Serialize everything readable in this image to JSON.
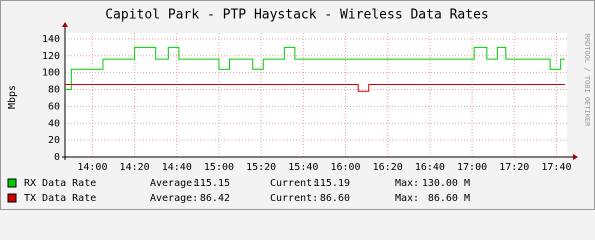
{
  "chart_data": {
    "type": "line",
    "title": "Capitol Park - PTP Haystack - Wireless Data Rates",
    "y_label": "Mbps",
    "side_label": "RRDTOOL / TOBI OETIKER",
    "xlim": [
      827,
      1065
    ],
    "xticks": [
      {
        "value": 840,
        "label": "14:00"
      },
      {
        "value": 860,
        "label": "14:20"
      },
      {
        "value": 880,
        "label": "14:40"
      },
      {
        "value": 900,
        "label": "15:00"
      },
      {
        "value": 920,
        "label": "15:20"
      },
      {
        "value": 940,
        "label": "15:40"
      },
      {
        "value": 960,
        "label": "16:00"
      },
      {
        "value": 980,
        "label": "16:20"
      },
      {
        "value": 1000,
        "label": "16:40"
      },
      {
        "value": 1020,
        "label": "17:00"
      },
      {
        "value": 1040,
        "label": "17:20"
      },
      {
        "value": 1060,
        "label": "17:40"
      }
    ],
    "ylim": [
      0,
      147
    ],
    "yticks": [
      0,
      20,
      40,
      60,
      80,
      100,
      120,
      140
    ],
    "grid": true,
    "series": [
      {
        "name": "RX Data Rate",
        "color": "#00cc00",
        "x": [
          827,
          830,
          830,
          845,
          845,
          860,
          860,
          870,
          870,
          876,
          876,
          881,
          881,
          900,
          900,
          905,
          905,
          916,
          916,
          921,
          921,
          931,
          931,
          936,
          936,
          1021,
          1021,
          1027,
          1027,
          1032,
          1032,
          1036,
          1036,
          1057,
          1057,
          1062,
          1062,
          1064
        ],
        "values": [
          80,
          80,
          104,
          104,
          116,
          116,
          130,
          130,
          116,
          116,
          130,
          130,
          116,
          116,
          104,
          104,
          116,
          116,
          104,
          104,
          116,
          116,
          130,
          130,
          116,
          116,
          130,
          130,
          116,
          116,
          130,
          130,
          116,
          116,
          104,
          104,
          116,
          116
        ],
        "stats": [
          "Average:",
          "115.15",
          "Current:",
          "115.19",
          "Max:",
          "130.00 M"
        ]
      },
      {
        "name": "TX Data Rate",
        "color": "#cc0000",
        "x": [
          827,
          966,
          966,
          971,
          971,
          1064
        ],
        "values": [
          86,
          86,
          78,
          78,
          86,
          86
        ],
        "stats": [
          "Average:",
          "86.42",
          "Current:",
          "86.60",
          "Max:",
          "86.60 M"
        ]
      }
    ]
  }
}
